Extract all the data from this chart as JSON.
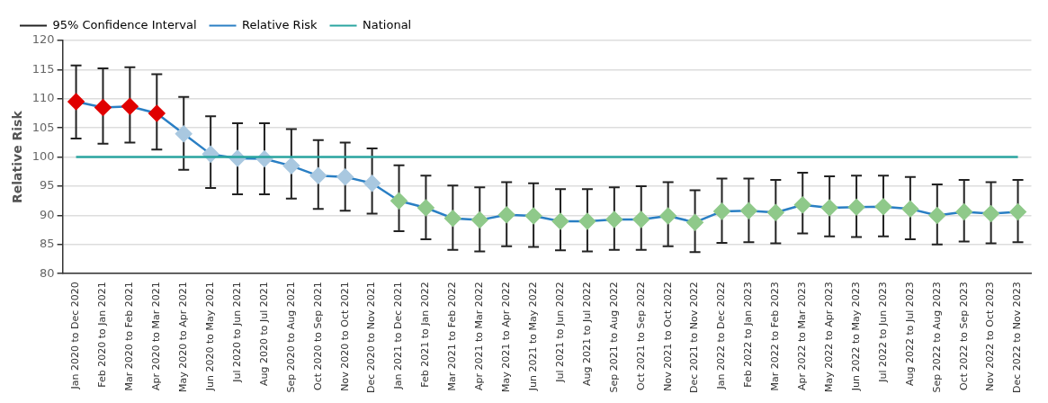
{
  "chart_data": {
    "type": "line",
    "ylabel": "Relative Risk",
    "legend": "top left",
    "grid": "y",
    "marker": "diamond",
    "annotations": [
      "95% Confidence Interval"
    ],
    "categories": [
      "Jan 2020 to Dec 2020",
      "Feb 2020 to Jan 2021",
      "Mar 2020 to Feb 2021",
      "Apr 2020 to Mar 2021",
      "May 2020 to Apr 2021",
      "Jun 2020 to May 2021",
      "Jul 2020 to Jun 2021",
      "Aug 2020 to Jul 2021",
      "Sep 2020 to Aug 2021",
      "Oct 2020 to Sep 2021",
      "Nov 2020 to Oct 2021",
      "Dec 2020 to Nov 2021",
      "Jan 2021 to Dec 2021",
      "Feb 2021 to Jan 2022",
      "Mar 2021 to Feb 2022",
      "Apr 2021 to Mar 2022",
      "May 2021 to Apr 2022",
      "Jun 2021 to May 2022",
      "Jul 2021 to Jun 2022",
      "Aug 2021 to Jul 2022",
      "Sep 2021 to Aug 2022",
      "Oct 2021 to Sep 2022",
      "Nov 2021 to Oct 2022",
      "Dec 2021 to Nov 2022",
      "Jan 2022 to Dec 2022",
      "Feb 2022 to Jan 2023",
      "Mar 2022 to Feb 2023",
      "Apr 2022 to Mar 2023",
      "May 2022 to Apr 2023",
      "Jun 2022 to May 2023",
      "Jul 2022 to Jun 2023",
      "Aug 2022 to Jul 2023",
      "Sep 2022 to Aug 2023",
      "Oct 2022 to Sep 2023",
      "Nov 2022 to Oct 2023",
      "Dec 2022 to Nov 2023"
    ],
    "ylim": [
      80,
      120
    ],
    "yticks": [
      80,
      85,
      90,
      95,
      100,
      105,
      110,
      115,
      120
    ],
    "series": [
      {
        "name": "Relative Risk",
        "color": "#2a7fc4",
        "values": [
          109.5,
          108.5,
          108.7,
          107.5,
          104,
          100.5,
          99.8,
          99.7,
          98.5,
          96.8,
          96.6,
          95.5,
          92.5,
          91.3,
          89.5,
          89.2,
          90.1,
          89.9,
          89,
          89,
          89.3,
          89.3,
          89.9,
          88.8,
          90.7,
          90.8,
          90.5,
          91.8,
          91.3,
          91.4,
          91.5,
          91.1,
          90,
          90.6,
          90.3,
          90.6
        ],
        "colors": [
          "#e00000",
          "#e00000",
          "#e00000",
          "#e00000",
          "#a9c8e0",
          "#a9c8e0",
          "#a9c8e0",
          "#a9c8e0",
          "#a9c8e0",
          "#a9c8e0",
          "#a9c8e0",
          "#a9c8e0",
          "#8fc98a",
          "#8fc98a",
          "#8fc98a",
          "#8fc98a",
          "#8fc98a",
          "#8fc98a",
          "#8fc98a",
          "#8fc98a",
          "#8fc98a",
          "#8fc98a",
          "#8fc98a",
          "#8fc98a",
          "#8fc98a",
          "#8fc98a",
          "#8fc98a",
          "#8fc98a",
          "#8fc98a",
          "#8fc98a",
          "#8fc98a",
          "#8fc98a",
          "#8fc98a",
          "#8fc98a",
          "#8fc98a",
          "#8fc98a"
        ],
        "errors": [
          [
            103.2,
            115.7
          ],
          [
            102.3,
            115.2
          ],
          [
            102.5,
            115.4
          ],
          [
            101.3,
            114.2
          ],
          [
            97.8,
            110.3
          ],
          [
            94.7,
            107
          ],
          [
            93.6,
            105.8
          ],
          [
            93.6,
            105.8
          ],
          [
            92.9,
            104.8
          ],
          [
            91.1,
            102.9
          ],
          [
            90.8,
            102.5
          ],
          [
            90.3,
            101.5
          ],
          [
            87.3,
            98.6
          ],
          [
            85.9,
            96.8
          ],
          [
            84.1,
            95.1
          ],
          [
            83.8,
            94.8
          ],
          [
            84.7,
            95.7
          ],
          [
            84.6,
            95.5
          ],
          [
            84,
            94.5
          ],
          [
            83.8,
            94.5
          ],
          [
            84.1,
            94.8
          ],
          [
            84.1,
            95
          ],
          [
            84.7,
            95.7
          ],
          [
            83.7,
            94.3
          ],
          [
            85.3,
            96.3
          ],
          [
            85.4,
            96.3
          ],
          [
            85.2,
            96.1
          ],
          [
            86.9,
            97.3
          ],
          [
            86.4,
            96.7
          ],
          [
            86.3,
            96.8
          ],
          [
            86.4,
            96.8
          ],
          [
            85.9,
            96.6
          ],
          [
            85,
            95.3
          ],
          [
            85.5,
            96.1
          ],
          [
            85.2,
            95.7
          ],
          [
            85.4,
            96.1
          ]
        ]
      },
      {
        "name": "National",
        "color": "#2aa5a0",
        "marker": "none",
        "values": [
          100,
          100,
          100,
          100,
          100,
          100,
          100,
          100,
          100,
          100,
          100,
          100,
          100,
          100,
          100,
          100,
          100,
          100,
          100,
          100,
          100,
          100,
          100,
          100,
          100,
          100,
          100,
          100,
          100,
          100,
          100,
          100,
          100,
          100,
          100,
          100
        ]
      }
    ]
  }
}
